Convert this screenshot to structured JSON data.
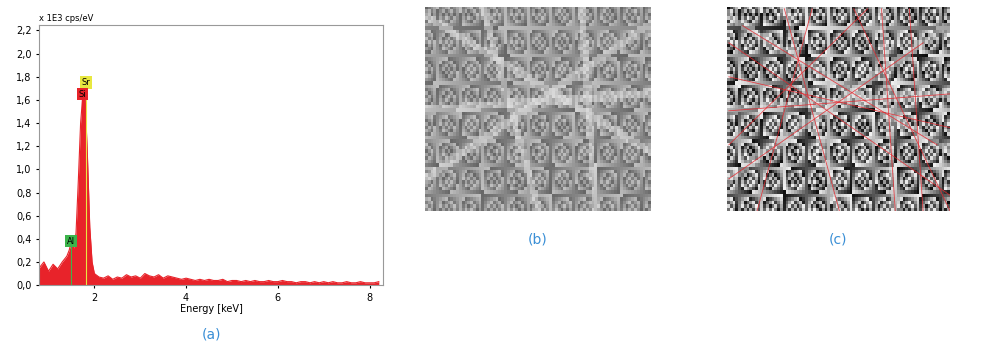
{
  "chart_data": {
    "type": "area",
    "y_label": "x 1E3 cps/eV",
    "x_label": "Energy [keV]",
    "color": "#e8232a",
    "x": [
      0.8,
      0.9,
      1.0,
      1.1,
      1.2,
      1.3,
      1.4,
      1.45,
      1.5,
      1.55,
      1.6,
      1.65,
      1.7,
      1.75,
      1.8,
      1.85,
      1.9,
      1.95,
      2.0,
      2.1,
      2.2,
      2.3,
      2.4,
      2.5,
      2.6,
      2.7,
      2.8,
      2.9,
      3.0,
      3.1,
      3.2,
      3.3,
      3.4,
      3.5,
      3.6,
      3.7,
      3.8,
      3.9,
      4.0,
      4.1,
      4.2,
      4.3,
      4.4,
      4.5,
      4.6,
      4.7,
      4.8,
      4.9,
      5.0,
      5.1,
      5.2,
      5.3,
      5.4,
      5.5,
      5.6,
      5.7,
      5.8,
      5.9,
      6.0,
      6.1,
      6.2,
      6.3,
      6.4,
      6.5,
      6.6,
      6.7,
      6.8,
      6.9,
      7.0,
      7.1,
      7.2,
      7.3,
      7.4,
      7.5,
      7.6,
      7.7,
      7.8,
      7.9,
      8.0,
      8.1,
      8.2
    ],
    "values": [
      0.15,
      0.2,
      0.12,
      0.18,
      0.14,
      0.2,
      0.25,
      0.3,
      0.38,
      0.32,
      0.45,
      0.9,
      1.4,
      1.65,
      1.6,
      1.1,
      0.5,
      0.2,
      0.1,
      0.07,
      0.06,
      0.08,
      0.05,
      0.07,
      0.06,
      0.09,
      0.07,
      0.08,
      0.06,
      0.1,
      0.08,
      0.07,
      0.09,
      0.06,
      0.08,
      0.07,
      0.06,
      0.05,
      0.06,
      0.05,
      0.04,
      0.05,
      0.04,
      0.05,
      0.04,
      0.04,
      0.05,
      0.03,
      0.04,
      0.04,
      0.03,
      0.04,
      0.03,
      0.04,
      0.03,
      0.03,
      0.04,
      0.03,
      0.03,
      0.04,
      0.03,
      0.03,
      0.02,
      0.03,
      0.03,
      0.02,
      0.03,
      0.02,
      0.03,
      0.02,
      0.03,
      0.02,
      0.02,
      0.03,
      0.02,
      0.02,
      0.03,
      0.02,
      0.02,
      0.02,
      0.03
    ],
    "xlim": [
      0.8,
      8.3
    ],
    "ylim": [
      0.0,
      2.25
    ],
    "xticks": [
      2,
      4,
      6,
      8
    ],
    "yticks": [
      {
        "value": 0.0,
        "label": "0,0"
      },
      {
        "value": 0.2,
        "label": "0,2"
      },
      {
        "value": 0.4,
        "label": "0,4"
      },
      {
        "value": 0.6,
        "label": "0,6"
      },
      {
        "value": 0.8,
        "label": "0,8"
      },
      {
        "value": 1.0,
        "label": "1,0"
      },
      {
        "value": 1.2,
        "label": "1,2"
      },
      {
        "value": 1.4,
        "label": "1,4"
      },
      {
        "value": 1.6,
        "label": "1,6"
      },
      {
        "value": 1.8,
        "label": "1,8"
      },
      {
        "value": 2.0,
        "label": "2,0"
      },
      {
        "value": 2.2,
        "label": "2,2"
      }
    ],
    "annotations": [
      {
        "text": "Sr",
        "x": 1.81,
        "y": 1.75,
        "color": "#e8e840"
      },
      {
        "text": "Si",
        "x": 1.74,
        "y": 1.65,
        "color": "#e8232a"
      },
      {
        "text": "Al",
        "x": 1.49,
        "y": 0.38,
        "color": "#3cb44b"
      }
    ]
  },
  "panel_labels": [
    "(a)",
    "(b)",
    "(c)"
  ]
}
